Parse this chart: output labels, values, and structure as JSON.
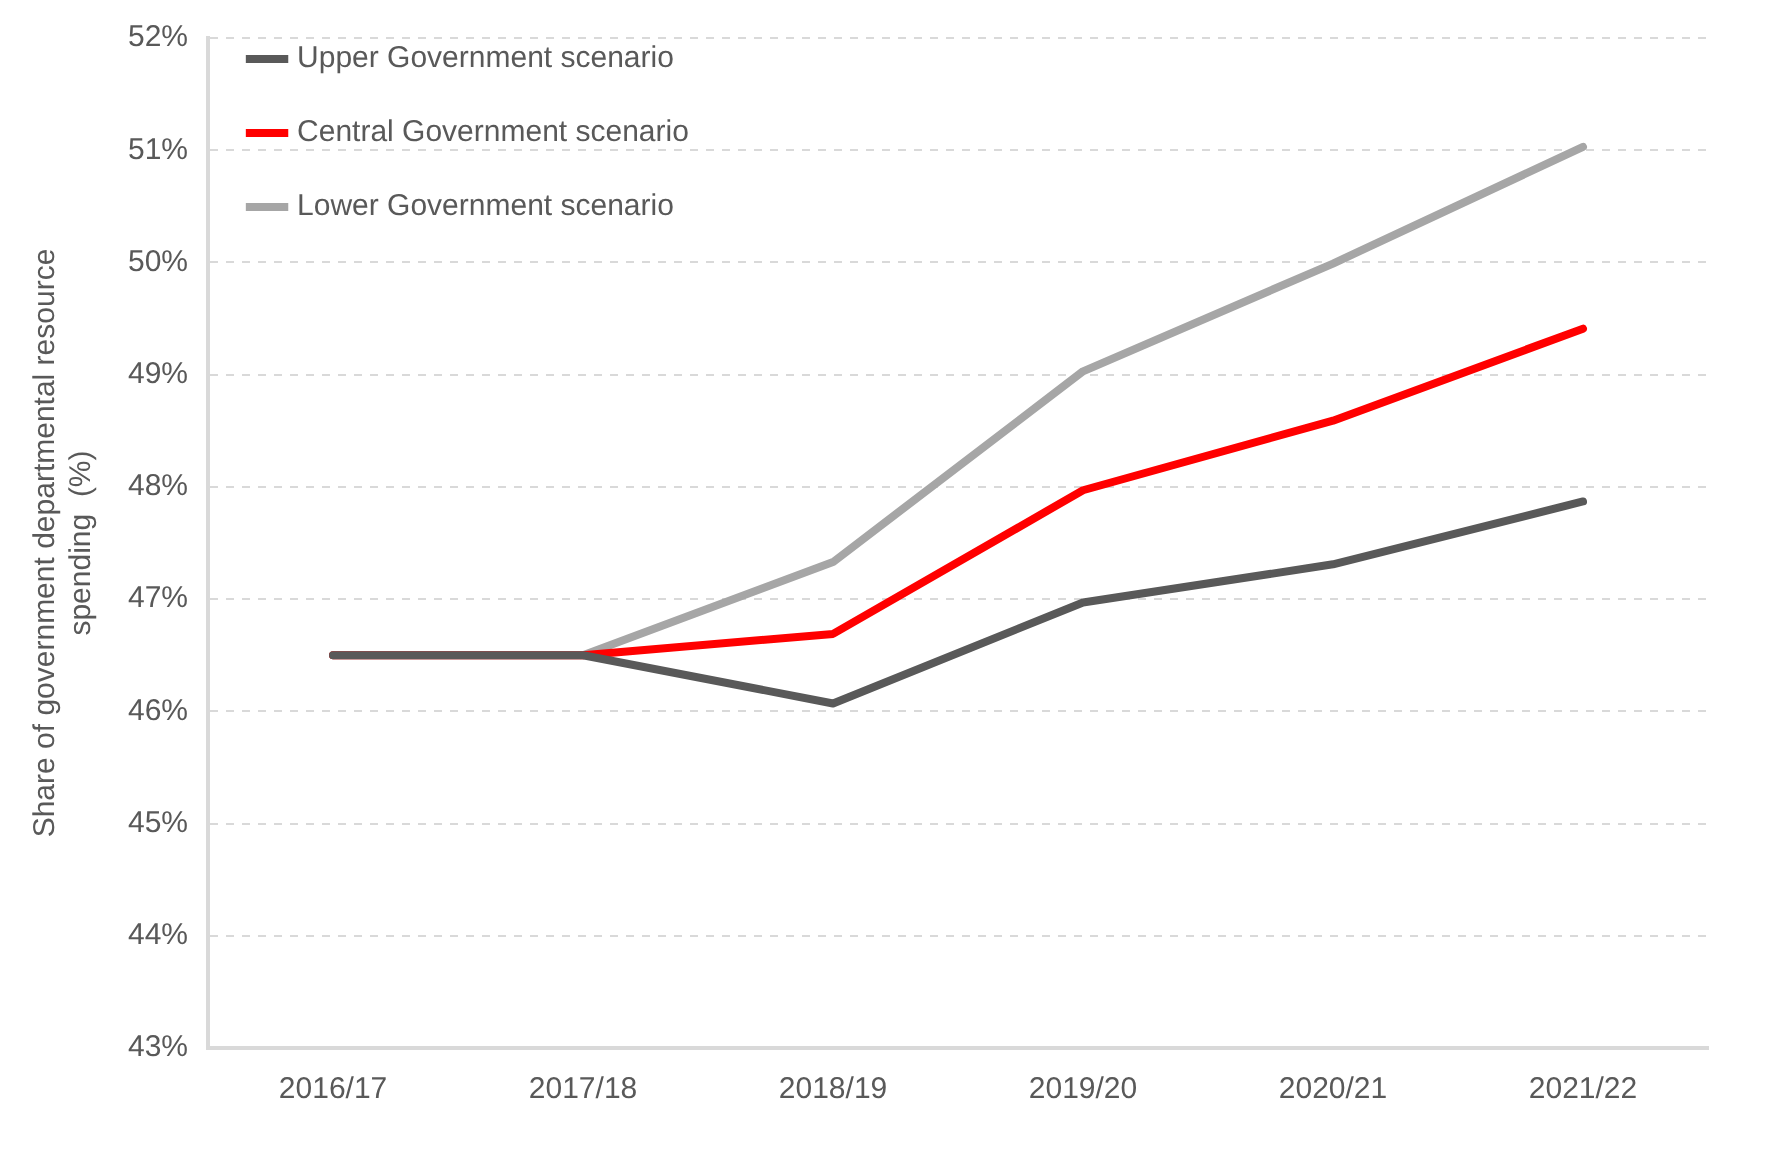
{
  "chart_data": {
    "type": "line",
    "ylabel": "Share of government departmental resource spending  (%)",
    "categories": [
      "2016/17",
      "2017/18",
      "2018/19",
      "2019/20",
      "2020/21",
      "2021/22"
    ],
    "series": [
      {
        "name": "Upper Government scenario",
        "color": "#595959",
        "values": [
          46.5,
          46.5,
          46.07,
          46.97,
          47.31,
          47.87
        ]
      },
      {
        "name": "Central Government scenario",
        "color": "#ff0000",
        "values": [
          46.5,
          46.5,
          46.69,
          47.97,
          48.59,
          49.41
        ]
      },
      {
        "name": "Lower Government scenario",
        "color": "#a6a6a6",
        "values": [
          46.5,
          46.5,
          47.33,
          49.03,
          49.99,
          51.03
        ]
      }
    ],
    "ylim": [
      43,
      52
    ],
    "yticks": [
      {
        "value": 43,
        "label": "43%"
      },
      {
        "value": 44,
        "label": "44%"
      },
      {
        "value": 45,
        "label": "45%"
      },
      {
        "value": 46,
        "label": "46%"
      },
      {
        "value": 47,
        "label": "47%"
      },
      {
        "value": 48,
        "label": "48%"
      },
      {
        "value": 49,
        "label": "49%"
      },
      {
        "value": 50,
        "label": "50%"
      },
      {
        "value": 51,
        "label": "51%"
      },
      {
        "value": 52,
        "label": "52%"
      }
    ],
    "grid": "y",
    "legend": "top left",
    "marker": "none",
    "line_style": "solid"
  }
}
